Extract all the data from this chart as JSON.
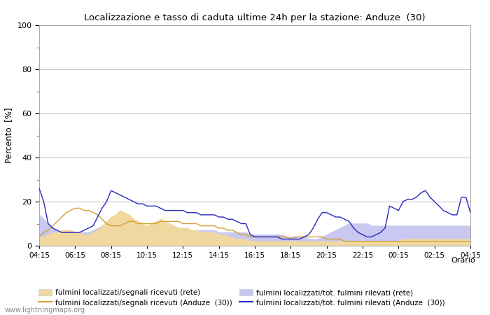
{
  "title": "Localizzazione e tasso di caduta ultime 24h per la stazione: Anduze  (30)",
  "ylabel": "Percento  [%]",
  "xlabel": "Orario",
  "ylim": [
    0,
    100
  ],
  "yticks_major": [
    0,
    20,
    40,
    60,
    80,
    100
  ],
  "yticks_minor": [
    10,
    30,
    50,
    70,
    90
  ],
  "x_labels": [
    "04:15",
    "06:15",
    "08:15",
    "10:15",
    "12:15",
    "14:15",
    "16:15",
    "18:15",
    "20:15",
    "22:15",
    "00:15",
    "02:15",
    "04:15"
  ],
  "background_color": "#ffffff",
  "grid_color": "#c8c8c8",
  "fill_rete_color": "#f0d8a0",
  "fill_anduze_color": "#c8c8f0",
  "line_rete_color": "#d4a030",
  "line_anduze_color": "#2828c0",
  "watermark": "www.lightningmaps.org",
  "legend": [
    {
      "label": "fulmini localizzati/segnali ricevuti (rete)",
      "type": "fill",
      "color": "#f0d8a0"
    },
    {
      "label": "fulmini localizzati/segnali ricevuti (Anduze  (30))",
      "type": "line",
      "color": "#d4a030"
    },
    {
      "label": "fulmini localizzati/tot. fulmini rilevati (rete)",
      "type": "fill",
      "color": "#c8c8f0"
    },
    {
      "label": "fulmini localizzati/tot. fulmini rilevati (Anduze  (30))",
      "type": "line",
      "color": "#2828c0"
    }
  ],
  "n_points": 97,
  "fill_rete_y": [
    4,
    4,
    5,
    6,
    6,
    7,
    7,
    7,
    6,
    6,
    5,
    5,
    6,
    7,
    9,
    11,
    13,
    14,
    16,
    15,
    14,
    12,
    11,
    10,
    9,
    10,
    11,
    12,
    11,
    10,
    9,
    8,
    8,
    8,
    7,
    7,
    6,
    6,
    6,
    6,
    5,
    5,
    4,
    4,
    3,
    3,
    3,
    2,
    2,
    2,
    2,
    2,
    2,
    2,
    2,
    2,
    2,
    2,
    2,
    2,
    2,
    2,
    2,
    2,
    2,
    2,
    2,
    2,
    2,
    2,
    2,
    2,
    2,
    2,
    2,
    2,
    2,
    2,
    2,
    2,
    2,
    3,
    3,
    3,
    3,
    3,
    3,
    3,
    3,
    3,
    3,
    3,
    3,
    3,
    3,
    3,
    3
  ],
  "fill_anduze_y": [
    14,
    12,
    10,
    8,
    7,
    6,
    6,
    6,
    6,
    6,
    6,
    6,
    7,
    8,
    9,
    10,
    11,
    11,
    11,
    10,
    10,
    9,
    9,
    8,
    8,
    8,
    8,
    8,
    7,
    7,
    7,
    7,
    7,
    7,
    7,
    7,
    7,
    7,
    7,
    7,
    6,
    6,
    6,
    6,
    6,
    6,
    6,
    5,
    5,
    5,
    5,
    5,
    5,
    5,
    5,
    4,
    4,
    4,
    4,
    4,
    3,
    3,
    3,
    4,
    5,
    6,
    7,
    8,
    9,
    10,
    10,
    10,
    10,
    10,
    9,
    9,
    9,
    9,
    9,
    9,
    9,
    9,
    9,
    9,
    9,
    9,
    9,
    9,
    9,
    9,
    9,
    9,
    9,
    9,
    9,
    9,
    9
  ],
  "line_rete_y": [
    4,
    6,
    7,
    9,
    11,
    13,
    15,
    16,
    17,
    17,
    16,
    16,
    15,
    14,
    12,
    10,
    9,
    9,
    9,
    10,
    11,
    11,
    10,
    10,
    10,
    10,
    10,
    11,
    11,
    11,
    11,
    11,
    10,
    10,
    10,
    10,
    9,
    9,
    9,
    9,
    8,
    8,
    7,
    7,
    6,
    5,
    5,
    4,
    4,
    4,
    4,
    4,
    4,
    4,
    4,
    4,
    3,
    4,
    4,
    4,
    4,
    4,
    4,
    4,
    3,
    3,
    3,
    3,
    2,
    2,
    2,
    2,
    2,
    2,
    2,
    2,
    2,
    2,
    2,
    2,
    2,
    2,
    2,
    2,
    2,
    2,
    2,
    2,
    2,
    2,
    2,
    2,
    2,
    2,
    2,
    2,
    2
  ],
  "line_anduze_y": [
    26,
    20,
    10,
    8,
    7,
    6,
    6,
    6,
    6,
    6,
    7,
    8,
    9,
    13,
    17,
    20,
    25,
    24,
    23,
    22,
    21,
    20,
    19,
    19,
    18,
    18,
    18,
    17,
    16,
    16,
    16,
    16,
    16,
    15,
    15,
    15,
    14,
    14,
    14,
    14,
    13,
    13,
    12,
    12,
    11,
    10,
    10,
    5,
    4,
    4,
    4,
    4,
    4,
    4,
    3,
    3,
    3,
    3,
    3,
    4,
    5,
    8,
    12,
    15,
    15,
    14,
    13,
    13,
    12,
    11,
    8,
    6,
    5,
    4,
    4,
    5,
    6,
    8,
    18,
    17,
    16,
    20,
    21,
    21,
    22,
    24,
    25,
    22,
    20,
    18,
    16,
    15,
    14,
    14,
    22,
    22,
    15
  ]
}
